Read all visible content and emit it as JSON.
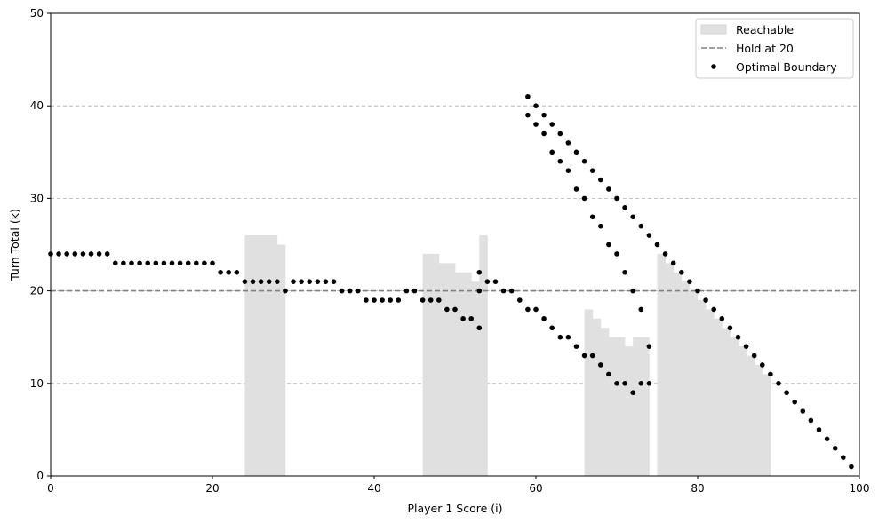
{
  "chart_data": {
    "type": "scatter",
    "title": "",
    "xlabel": "Player 1 Score (i)",
    "ylabel": "Turn Total (k)",
    "xlim": [
      0,
      100
    ],
    "ylim": [
      0,
      50
    ],
    "xticks": [
      0,
      20,
      40,
      60,
      80,
      100
    ],
    "yticks": [
      0,
      10,
      20,
      30,
      40,
      50
    ],
    "grid": "y-dashed",
    "legend_position": "top-right",
    "legend": [
      "Reachable",
      "Hold at 20",
      "Optimal Boundary"
    ],
    "hold_line": {
      "name": "Hold at 20",
      "y": 20,
      "color": "#808080"
    },
    "reachable": {
      "name": "Reachable",
      "color": "#e0e0e0",
      "steps": [
        [
          24,
          26
        ],
        [
          25,
          26
        ],
        [
          26,
          26
        ],
        [
          27,
          26
        ],
        [
          28,
          25
        ],
        [
          46,
          24
        ],
        [
          47,
          24
        ],
        [
          48,
          23
        ],
        [
          49,
          23
        ],
        [
          50,
          22
        ],
        [
          51,
          22
        ],
        [
          52,
          21
        ],
        [
          53,
          26
        ],
        [
          66,
          18
        ],
        [
          67,
          17
        ],
        [
          68,
          16
        ],
        [
          69,
          15
        ],
        [
          70,
          15
        ],
        [
          71,
          14
        ],
        [
          72,
          15
        ],
        [
          73,
          15
        ],
        [
          75,
          24
        ],
        [
          76,
          23
        ],
        [
          77,
          22
        ],
        [
          78,
          21
        ],
        [
          79,
          20
        ],
        [
          80,
          19
        ],
        [
          81,
          18
        ],
        [
          82,
          17
        ],
        [
          83,
          16
        ],
        [
          84,
          15
        ],
        [
          85,
          14
        ],
        [
          86,
          13
        ],
        [
          87,
          12
        ],
        [
          88,
          11
        ]
      ]
    },
    "series": [
      {
        "name": "Optimal Boundary",
        "color": "#000000",
        "points": [
          [
            0,
            24
          ],
          [
            1,
            24
          ],
          [
            2,
            24
          ],
          [
            3,
            24
          ],
          [
            4,
            24
          ],
          [
            5,
            24
          ],
          [
            6,
            24
          ],
          [
            7,
            24
          ],
          [
            8,
            23
          ],
          [
            9,
            23
          ],
          [
            10,
            23
          ],
          [
            11,
            23
          ],
          [
            12,
            23
          ],
          [
            13,
            23
          ],
          [
            14,
            23
          ],
          [
            15,
            23
          ],
          [
            16,
            23
          ],
          [
            17,
            23
          ],
          [
            18,
            23
          ],
          [
            19,
            23
          ],
          [
            20,
            23
          ],
          [
            21,
            22
          ],
          [
            22,
            22
          ],
          [
            23,
            22
          ],
          [
            24,
            21
          ],
          [
            25,
            21
          ],
          [
            26,
            21
          ],
          [
            27,
            21
          ],
          [
            28,
            21
          ],
          [
            29,
            20
          ],
          [
            30,
            21
          ],
          [
            31,
            21
          ],
          [
            32,
            21
          ],
          [
            33,
            21
          ],
          [
            34,
            21
          ],
          [
            35,
            21
          ],
          [
            36,
            20
          ],
          [
            37,
            20
          ],
          [
            38,
            20
          ],
          [
            39,
            19
          ],
          [
            40,
            19
          ],
          [
            41,
            19
          ],
          [
            42,
            19
          ],
          [
            43,
            19
          ],
          [
            44,
            20
          ],
          [
            45,
            20
          ],
          [
            46,
            19
          ],
          [
            47,
            19
          ],
          [
            48,
            19
          ],
          [
            49,
            18
          ],
          [
            50,
            18
          ],
          [
            51,
            17
          ],
          [
            52,
            17
          ],
          [
            53,
            16
          ],
          [
            53,
            20
          ],
          [
            53,
            22
          ],
          [
            54,
            21
          ],
          [
            55,
            21
          ],
          [
            56,
            20
          ],
          [
            57,
            20
          ],
          [
            58,
            19
          ],
          [
            59,
            18
          ],
          [
            59,
            39
          ],
          [
            59,
            41
          ],
          [
            60,
            18
          ],
          [
            60,
            38
          ],
          [
            60,
            40
          ],
          [
            61,
            17
          ],
          [
            61,
            37
          ],
          [
            61,
            39
          ],
          [
            62,
            16
          ],
          [
            62,
            35
          ],
          [
            62,
            38
          ],
          [
            63,
            15
          ],
          [
            63,
            34
          ],
          [
            63,
            37
          ],
          [
            64,
            15
          ],
          [
            64,
            33
          ],
          [
            64,
            36
          ],
          [
            65,
            14
          ],
          [
            65,
            31
          ],
          [
            65,
            35
          ],
          [
            66,
            13
          ],
          [
            66,
            30
          ],
          [
            66,
            34
          ],
          [
            67,
            13
          ],
          [
            67,
            28
          ],
          [
            67,
            33
          ],
          [
            68,
            12
          ],
          [
            68,
            27
          ],
          [
            68,
            32
          ],
          [
            69,
            11
          ],
          [
            69,
            25
          ],
          [
            69,
            31
          ],
          [
            70,
            10
          ],
          [
            70,
            24
          ],
          [
            70,
            30
          ],
          [
            71,
            10
          ],
          [
            71,
            22
          ],
          [
            71,
            29
          ],
          [
            72,
            9
          ],
          [
            72,
            20
          ],
          [
            72,
            28
          ],
          [
            73,
            10
          ],
          [
            73,
            18
          ],
          [
            73,
            27
          ],
          [
            74,
            10
          ],
          [
            74,
            14
          ],
          [
            74,
            26
          ],
          [
            75,
            25
          ],
          [
            76,
            24
          ],
          [
            77,
            23
          ],
          [
            78,
            22
          ],
          [
            79,
            21
          ],
          [
            80,
            20
          ],
          [
            81,
            19
          ],
          [
            82,
            18
          ],
          [
            83,
            17
          ],
          [
            84,
            16
          ],
          [
            85,
            15
          ],
          [
            86,
            14
          ],
          [
            87,
            13
          ],
          [
            88,
            12
          ],
          [
            89,
            11
          ],
          [
            90,
            10
          ],
          [
            91,
            9
          ],
          [
            92,
            8
          ],
          [
            93,
            7
          ],
          [
            94,
            6
          ],
          [
            95,
            5
          ],
          [
            96,
            4
          ],
          [
            97,
            3
          ],
          [
            98,
            2
          ],
          [
            99,
            1
          ]
        ]
      }
    ]
  }
}
